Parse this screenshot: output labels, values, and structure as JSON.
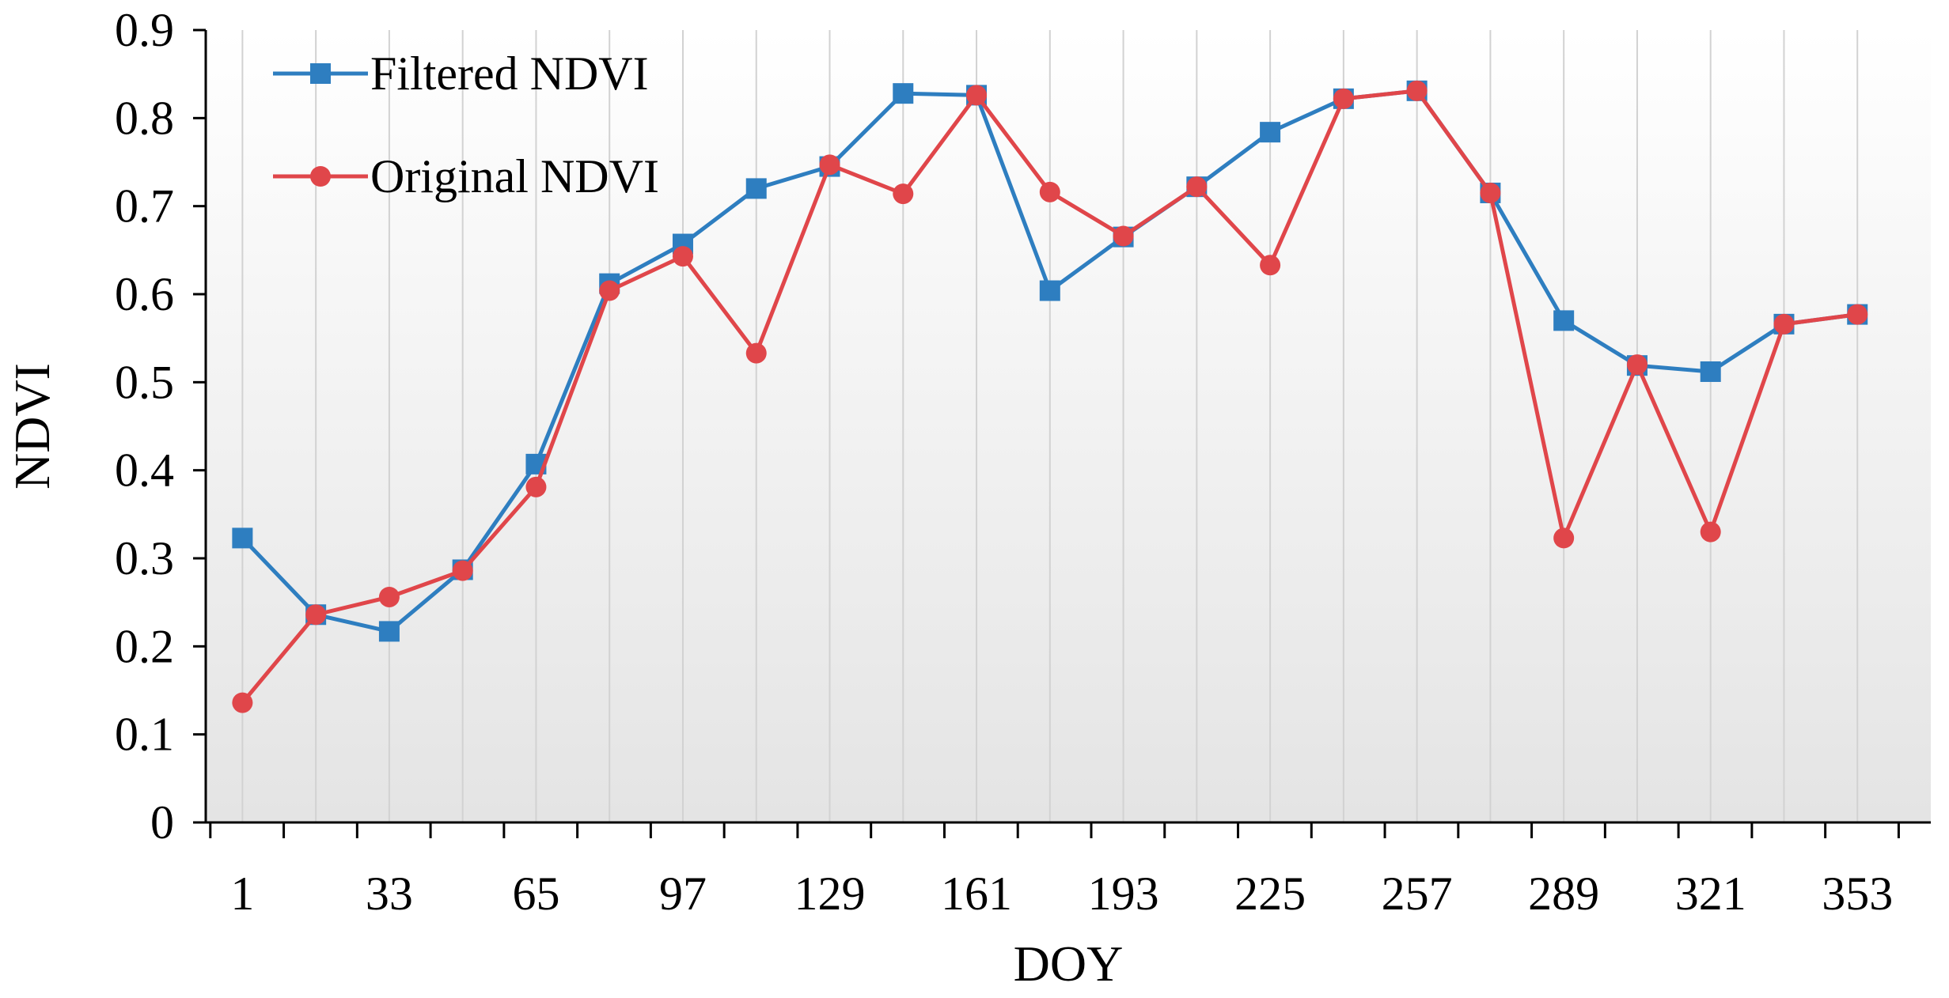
{
  "chart_data": {
    "type": "line",
    "xlabel": "DOY",
    "ylabel": "NDVI",
    "ylim": [
      0,
      0.9
    ],
    "yticks": [
      "0",
      "0.1",
      "0.2",
      "0.3",
      "0.4",
      "0.5",
      "0.6",
      "0.7",
      "0.8",
      "0.9"
    ],
    "xlim": [
      -7,
      369
    ],
    "xticks": [
      "1",
      "33",
      "65",
      "97",
      "129",
      "161",
      "193",
      "225",
      "257",
      "289",
      "321",
      "353"
    ],
    "x": [
      1,
      17,
      33,
      49,
      65,
      81,
      97,
      113,
      129,
      145,
      161,
      177,
      193,
      209,
      225,
      241,
      257,
      273,
      289,
      305,
      321,
      337,
      353
    ],
    "grid": "vertical lines at each observation",
    "background": "gradient white to light gray",
    "legend_position": "top-left",
    "series": [
      {
        "name": "Filtered NDVI",
        "color": "#2E7EC0",
        "marker": "square",
        "values": [
          0.323,
          0.236,
          0.217,
          0.287,
          0.407,
          0.612,
          0.657,
          0.72,
          0.745,
          0.828,
          0.826,
          0.604,
          0.665,
          0.722,
          0.784,
          0.822,
          0.831,
          0.715,
          0.57,
          0.519,
          0.512,
          0.566,
          0.577
        ]
      },
      {
        "name": "Original NDVI",
        "color": "#E0464A",
        "marker": "circle",
        "values": [
          0.136,
          0.236,
          0.256,
          0.286,
          0.381,
          0.604,
          0.643,
          0.533,
          0.747,
          0.714,
          0.826,
          0.716,
          0.666,
          0.722,
          0.633,
          0.822,
          0.831,
          0.715,
          0.323,
          0.52,
          0.33,
          0.566,
          0.577
        ]
      }
    ]
  }
}
